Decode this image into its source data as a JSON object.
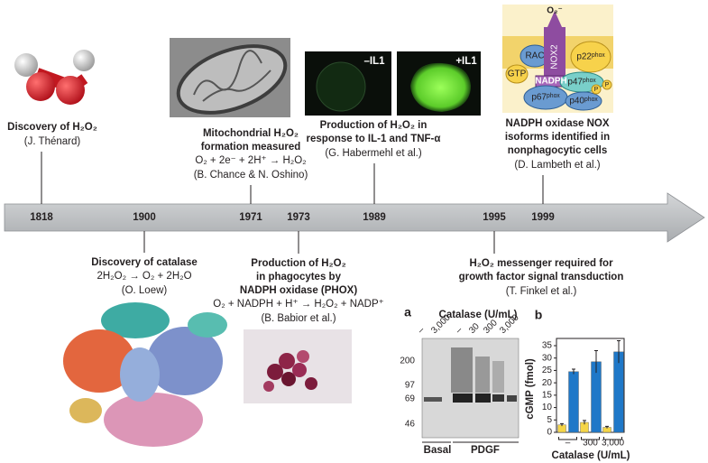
{
  "timeline": {
    "events": [
      {
        "year": "1818",
        "heading": [
          "Discovery of H₂O₂"
        ],
        "credit": "(J. Thénard)"
      },
      {
        "year": "1900",
        "heading": [
          "Discovery of catalase"
        ],
        "equation": "2H₂O₂ → O₂ + 2H₂O",
        "credit": "(O. Loew)"
      },
      {
        "year": "1971",
        "heading": [
          "Mitochondrial H₂O₂",
          "formation measured"
        ],
        "equation": "O₂ + 2e⁻ + 2H⁺ → H₂O₂",
        "credit": "(B. Chance & N. Oshino)"
      },
      {
        "year": "1973",
        "heading": [
          "Production of H₂O₂",
          "in phagocytes by",
          "NADPH oxidase (PHOX)"
        ],
        "equation": "O₂ + NADPH + H⁺ → H₂O₂ + NADP⁺",
        "credit": "(B. Babior et al.)"
      },
      {
        "year": "1989",
        "heading": [
          "Production of H₂O₂ in",
          "response to IL-1 and TNF-α"
        ],
        "credit": "(G. Habermehl et al.)"
      },
      {
        "year": "1995",
        "heading": [
          "H₂O₂ messenger required for",
          "growth factor signal transduction"
        ],
        "credit": "(T. Finkel et al.)"
      },
      {
        "year": "1999",
        "heading": [
          "NADPH oxidase NOX",
          "isoforms identified in",
          "nonphagocytic cells"
        ],
        "credit": "(D. Lambeth et al.)"
      }
    ]
  },
  "il1_images": {
    "labels": [
      "–IL1",
      "+IL1"
    ]
  },
  "nox_diagram": {
    "superoxide": "O₂⁻",
    "rac": "RAC",
    "nox2": "NOX2",
    "p22": "p22ᵖʰᵒˣ",
    "gtp": "GTP",
    "nadph": "NADPH",
    "p47": "p47ᵖʰᵒˣ",
    "p67": "p67ᵖʰᵒˣ",
    "p40": "p40ᵖʰᵒˣ",
    "phospho": [
      "P",
      "P"
    ]
  },
  "panel_a": {
    "label": "a",
    "title": "Catalase (U/mL)",
    "lanes": [
      "–",
      "3,000",
      "–",
      "30",
      "300",
      "3,000"
    ],
    "markers": [
      "200",
      "97",
      "69",
      "46"
    ],
    "groups": [
      "Basal",
      "PDGF"
    ]
  },
  "panel_b": {
    "label": "b",
    "ylabel": "cGMP (fmol)",
    "xlabel": "Catalase (U/mL)",
    "categories": [
      "–",
      "300",
      "3,000"
    ],
    "ylim": [
      0,
      35
    ],
    "yticks": [
      0,
      5,
      10,
      15,
      20,
      25,
      30,
      35
    ],
    "series": [
      {
        "color": "#f5d547",
        "values": [
          3,
          4,
          2
        ],
        "errors": [
          0.5,
          0.8,
          0.4
        ]
      },
      {
        "color": "#1f78c8",
        "values": [
          24.5,
          28.5,
          32.5
        ],
        "errors": [
          1,
          4.5,
          4.5
        ]
      }
    ]
  }
}
